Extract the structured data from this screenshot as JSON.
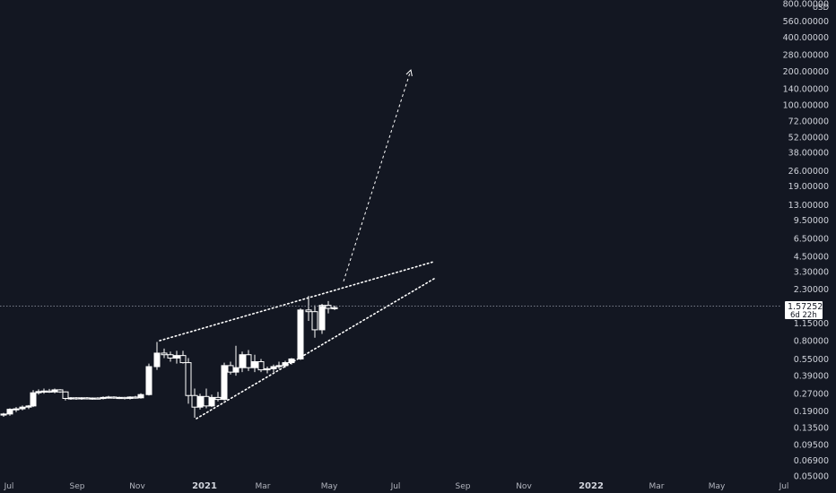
{
  "chart_data": {
    "type": "candlestick",
    "scale": "log",
    "currency": "USD",
    "y_ticks": [
      "800.00000",
      "560.00000",
      "400.00000",
      "280.00000",
      "200.00000",
      "140.00000",
      "100.00000",
      "72.00000",
      "52.00000",
      "38.00000",
      "26.00000",
      "19.00000",
      "13.00000",
      "9.50000",
      "6.50000",
      "4.50000",
      "3.30000",
      "2.30000",
      "1.57252",
      "1.15000",
      "0.80000",
      "0.55000",
      "0.39000",
      "0.27000",
      "0.19000",
      "0.13500",
      "0.09500",
      "0.06900",
      "0.05000"
    ],
    "x_ticks": [
      {
        "label": "Jul",
        "bold": false
      },
      {
        "label": "Sep",
        "bold": false
      },
      {
        "label": "Nov",
        "bold": false
      },
      {
        "label": "2021",
        "bold": true
      },
      {
        "label": "Mar",
        "bold": false
      },
      {
        "label": "May",
        "bold": false
      },
      {
        "label": "Jul",
        "bold": false
      },
      {
        "label": "Sep",
        "bold": false
      },
      {
        "label": "Nov",
        "bold": false
      },
      {
        "label": "2022",
        "bold": true
      },
      {
        "label": "Mar",
        "bold": false
      },
      {
        "label": "May",
        "bold": false
      },
      {
        "label": "Jul",
        "bold": false
      }
    ],
    "current_price": "1.57252",
    "countdown": "6d 22h",
    "candles": [
      {
        "x": 4,
        "o": 0.175,
        "h": 0.182,
        "l": 0.168,
        "c": 0.178
      },
      {
        "x": 11,
        "o": 0.178,
        "h": 0.2,
        "l": 0.172,
        "c": 0.196
      },
      {
        "x": 18,
        "o": 0.196,
        "h": 0.205,
        "l": 0.185,
        "c": 0.198
      },
      {
        "x": 25,
        "o": 0.198,
        "h": 0.212,
        "l": 0.192,
        "c": 0.205
      },
      {
        "x": 32,
        "o": 0.205,
        "h": 0.214,
        "l": 0.197,
        "c": 0.21
      },
      {
        "x": 37,
        "o": 0.21,
        "h": 0.29,
        "l": 0.205,
        "c": 0.275
      },
      {
        "x": 43,
        "o": 0.275,
        "h": 0.295,
        "l": 0.265,
        "c": 0.282
      },
      {
        "x": 49,
        "o": 0.282,
        "h": 0.3,
        "l": 0.27,
        "c": 0.285
      },
      {
        "x": 55,
        "o": 0.285,
        "h": 0.298,
        "l": 0.275,
        "c": 0.28
      },
      {
        "x": 61,
        "o": 0.28,
        "h": 0.3,
        "l": 0.272,
        "c": 0.292
      },
      {
        "x": 67,
        "o": 0.292,
        "h": 0.296,
        "l": 0.275,
        "c": 0.28
      },
      {
        "x": 73,
        "o": 0.28,
        "h": 0.283,
        "l": 0.235,
        "c": 0.245
      },
      {
        "x": 79,
        "o": 0.245,
        "h": 0.252,
        "l": 0.238,
        "c": 0.248
      },
      {
        "x": 85,
        "o": 0.248,
        "h": 0.252,
        "l": 0.238,
        "c": 0.244
      },
      {
        "x": 91,
        "o": 0.244,
        "h": 0.251,
        "l": 0.238,
        "c": 0.248
      },
      {
        "x": 97,
        "o": 0.248,
        "h": 0.252,
        "l": 0.24,
        "c": 0.244
      },
      {
        "x": 103,
        "o": 0.244,
        "h": 0.25,
        "l": 0.238,
        "c": 0.247
      },
      {
        "x": 109,
        "o": 0.247,
        "h": 0.251,
        "l": 0.24,
        "c": 0.245
      },
      {
        "x": 115,
        "o": 0.245,
        "h": 0.255,
        "l": 0.24,
        "c": 0.25
      },
      {
        "x": 121,
        "o": 0.25,
        "h": 0.258,
        "l": 0.244,
        "c": 0.252
      },
      {
        "x": 127,
        "o": 0.252,
        "h": 0.256,
        "l": 0.243,
        "c": 0.248
      },
      {
        "x": 133,
        "o": 0.248,
        "h": 0.254,
        "l": 0.242,
        "c": 0.25
      },
      {
        "x": 139,
        "o": 0.25,
        "h": 0.253,
        "l": 0.24,
        "c": 0.245
      },
      {
        "x": 145,
        "o": 0.245,
        "h": 0.256,
        "l": 0.24,
        "c": 0.252
      },
      {
        "x": 151,
        "o": 0.252,
        "h": 0.258,
        "l": 0.244,
        "c": 0.248
      },
      {
        "x": 157,
        "o": 0.248,
        "h": 0.272,
        "l": 0.244,
        "c": 0.265
      },
      {
        "x": 166,
        "o": 0.265,
        "h": 0.5,
        "l": 0.26,
        "c": 0.47
      },
      {
        "x": 175,
        "o": 0.47,
        "h": 0.78,
        "l": 0.44,
        "c": 0.62
      },
      {
        "x": 183,
        "o": 0.62,
        "h": 0.68,
        "l": 0.56,
        "c": 0.6
      },
      {
        "x": 190,
        "o": 0.6,
        "h": 0.64,
        "l": 0.52,
        "c": 0.56
      },
      {
        "x": 197,
        "o": 0.56,
        "h": 0.65,
        "l": 0.5,
        "c": 0.59
      },
      {
        "x": 204,
        "o": 0.59,
        "h": 0.65,
        "l": 0.5,
        "c": 0.51
      },
      {
        "x": 210,
        "o": 0.51,
        "h": 0.56,
        "l": 0.22,
        "c": 0.26
      },
      {
        "x": 217,
        "o": 0.26,
        "h": 0.3,
        "l": 0.165,
        "c": 0.205
      },
      {
        "x": 223,
        "o": 0.205,
        "h": 0.27,
        "l": 0.195,
        "c": 0.255
      },
      {
        "x": 230,
        "o": 0.255,
        "h": 0.3,
        "l": 0.2,
        "c": 0.21
      },
      {
        "x": 236,
        "o": 0.21,
        "h": 0.265,
        "l": 0.205,
        "c": 0.25
      },
      {
        "x": 243,
        "o": 0.25,
        "h": 0.28,
        "l": 0.23,
        "c": 0.24
      },
      {
        "x": 250,
        "o": 0.24,
        "h": 0.51,
        "l": 0.235,
        "c": 0.48
      },
      {
        "x": 257,
        "o": 0.48,
        "h": 0.52,
        "l": 0.4,
        "c": 0.42
      },
      {
        "x": 263,
        "o": 0.42,
        "h": 0.72,
        "l": 0.39,
        "c": 0.46
      },
      {
        "x": 270,
        "o": 0.46,
        "h": 0.64,
        "l": 0.42,
        "c": 0.6
      },
      {
        "x": 277,
        "o": 0.6,
        "h": 0.66,
        "l": 0.43,
        "c": 0.46
      },
      {
        "x": 284,
        "o": 0.46,
        "h": 0.6,
        "l": 0.42,
        "c": 0.52
      },
      {
        "x": 291,
        "o": 0.52,
        "h": 0.55,
        "l": 0.42,
        "c": 0.44
      },
      {
        "x": 298,
        "o": 0.44,
        "h": 0.47,
        "l": 0.41,
        "c": 0.45
      },
      {
        "x": 305,
        "o": 0.45,
        "h": 0.49,
        "l": 0.42,
        "c": 0.47
      },
      {
        "x": 311,
        "o": 0.47,
        "h": 0.52,
        "l": 0.45,
        "c": 0.48
      },
      {
        "x": 318,
        "o": 0.48,
        "h": 0.53,
        "l": 0.46,
        "c": 0.51
      },
      {
        "x": 325,
        "o": 0.51,
        "h": 0.56,
        "l": 0.49,
        "c": 0.55
      },
      {
        "x": 335,
        "o": 0.55,
        "h": 1.55,
        "l": 0.54,
        "c": 1.5
      },
      {
        "x": 344,
        "o": 1.5,
        "h": 2.0,
        "l": 1.2,
        "c": 1.45
      },
      {
        "x": 351,
        "o": 1.45,
        "h": 1.65,
        "l": 0.85,
        "c": 1.0
      },
      {
        "x": 359,
        "o": 1.0,
        "h": 1.7,
        "l": 0.92,
        "c": 1.65
      },
      {
        "x": 366,
        "o": 1.65,
        "h": 1.8,
        "l": 1.4,
        "c": 1.55
      },
      {
        "x": 373,
        "o": 1.55,
        "h": 1.64,
        "l": 1.5,
        "c": 1.57252
      }
    ],
    "trendlines": [
      {
        "x1": 178,
        "y1": 0.8,
        "x2": 482,
        "y2": 4.0,
        "style": "dotted"
      },
      {
        "x1": 219,
        "y1": 0.162,
        "x2": 484,
        "y2": 2.85,
        "style": "dotted"
      }
    ],
    "projection": {
      "x1": 383,
      "y1": 2.7,
      "x2": 458,
      "y2": 205.0,
      "style": "dashed"
    },
    "colors": {
      "background": "#131722",
      "candle": "#ffffff",
      "axis_text": "#d1d4dc",
      "price_tag": "#ffffff"
    }
  }
}
